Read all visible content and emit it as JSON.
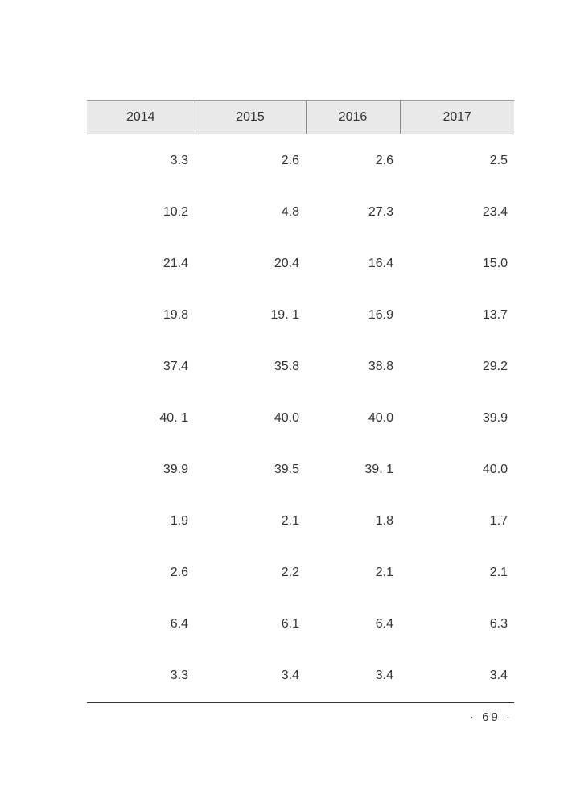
{
  "table": {
    "headers": [
      "2014",
      "2015",
      "2016",
      "2017"
    ],
    "rows": [
      [
        "3.3",
        "2.6",
        "2.6",
        "2.5"
      ],
      [
        "10.2",
        "4.8",
        "27.3",
        "23.4"
      ],
      [
        "21.4",
        "20.4",
        "16.4",
        "15.0"
      ],
      [
        "19.8",
        "19. 1",
        "16.9",
        "13.7"
      ],
      [
        "37.4",
        "35.8",
        "38.8",
        "29.2"
      ],
      [
        "40. 1",
        "40.0",
        "40.0",
        "39.9"
      ],
      [
        "39.9",
        "39.5",
        "39. 1",
        "40.0"
      ],
      [
        "1.9",
        "2.1",
        "1.8",
        "1.7"
      ],
      [
        "2.6",
        "2.2",
        "2.1",
        "2.1"
      ],
      [
        "6.4",
        "6.1",
        "6.4",
        "6.3"
      ],
      [
        "3.3",
        "3.4",
        "3.4",
        "3.4"
      ]
    ]
  },
  "footer": {
    "page_number": "· 69 ·"
  }
}
